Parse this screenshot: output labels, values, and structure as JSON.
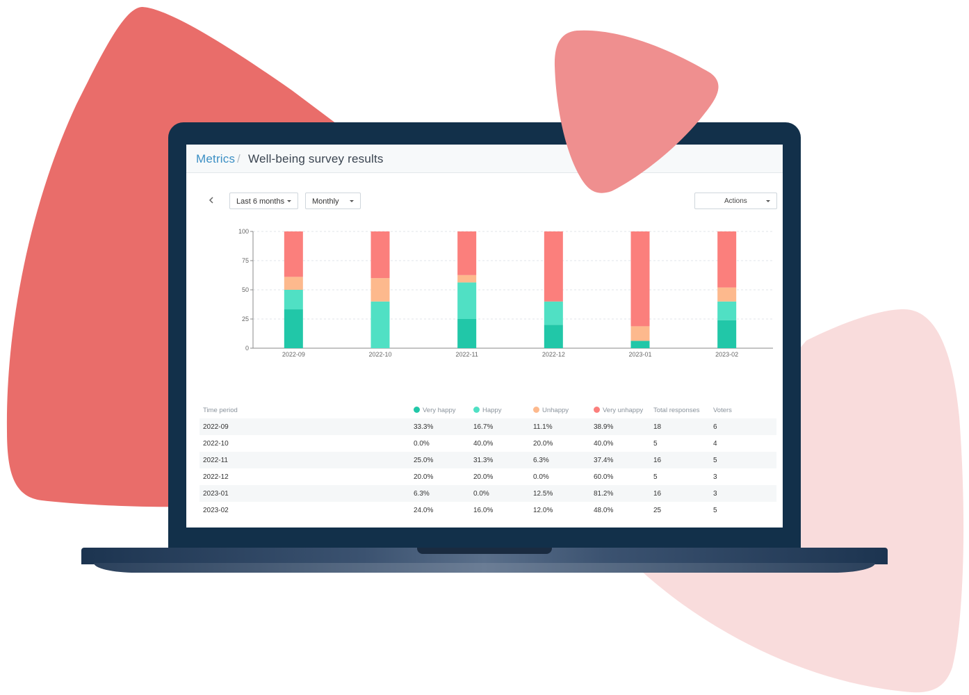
{
  "colors": {
    "very_happy": "#21c7a8",
    "happy": "#50e0c4",
    "unhappy": "#fdb98d",
    "very_unhappy": "#fb7f7c",
    "link": "#3b8fc4",
    "bezel": "#12304a"
  },
  "breadcrumb": {
    "parent": "Metrics",
    "separator": "/",
    "title": "Well-being survey results"
  },
  "toolbar": {
    "back_icon": "chevron-left-icon",
    "period": "Last 6 months",
    "interval": "Monthly",
    "actions": "Actions"
  },
  "chart_data": {
    "type": "bar",
    "stacked": true,
    "categories": [
      "2022-09",
      "2022-10",
      "2022-11",
      "2022-12",
      "2023-01",
      "2023-02"
    ],
    "series": [
      {
        "name": "Very happy",
        "values": [
          33.3,
          0.0,
          25.0,
          20.0,
          6.3,
          24.0
        ]
      },
      {
        "name": "Happy",
        "values": [
          16.7,
          40.0,
          31.3,
          20.0,
          0.0,
          16.0
        ]
      },
      {
        "name": "Unhappy",
        "values": [
          11.1,
          20.0,
          6.3,
          0.0,
          12.5,
          12.0
        ]
      },
      {
        "name": "Very unhappy",
        "values": [
          38.9,
          40.0,
          37.4,
          60.0,
          81.2,
          48.0
        ]
      }
    ],
    "yticks": [
      0,
      25,
      50,
      75,
      100
    ],
    "ylim": [
      0,
      100
    ],
    "grid": true,
    "xlabel": "",
    "ylabel": ""
  },
  "table": {
    "headers": {
      "period": "Time period",
      "very_happy": "Very happy",
      "happy": "Happy",
      "unhappy": "Unhappy",
      "very_unhappy": "Very unhappy",
      "total": "Total responses",
      "voters": "Voters"
    },
    "rows": [
      {
        "period": "2022-09",
        "very_happy": "33.3%",
        "happy": "16.7%",
        "unhappy": "11.1%",
        "very_unhappy": "38.9%",
        "total": "18",
        "voters": "6"
      },
      {
        "period": "2022-10",
        "very_happy": "0.0%",
        "happy": "40.0%",
        "unhappy": "20.0%",
        "very_unhappy": "40.0%",
        "total": "5",
        "voters": "4"
      },
      {
        "period": "2022-11",
        "very_happy": "25.0%",
        "happy": "31.3%",
        "unhappy": "6.3%",
        "very_unhappy": "37.4%",
        "total": "16",
        "voters": "5"
      },
      {
        "period": "2022-12",
        "very_happy": "20.0%",
        "happy": "20.0%",
        "unhappy": "0.0%",
        "very_unhappy": "60.0%",
        "total": "5",
        "voters": "3"
      },
      {
        "period": "2023-01",
        "very_happy": "6.3%",
        "happy": "0.0%",
        "unhappy": "12.5%",
        "very_unhappy": "81.2%",
        "total": "16",
        "voters": "3"
      },
      {
        "period": "2023-02",
        "very_happy": "24.0%",
        "happy": "16.0%",
        "unhappy": "12.0%",
        "very_unhappy": "48.0%",
        "total": "25",
        "voters": "5"
      }
    ]
  }
}
